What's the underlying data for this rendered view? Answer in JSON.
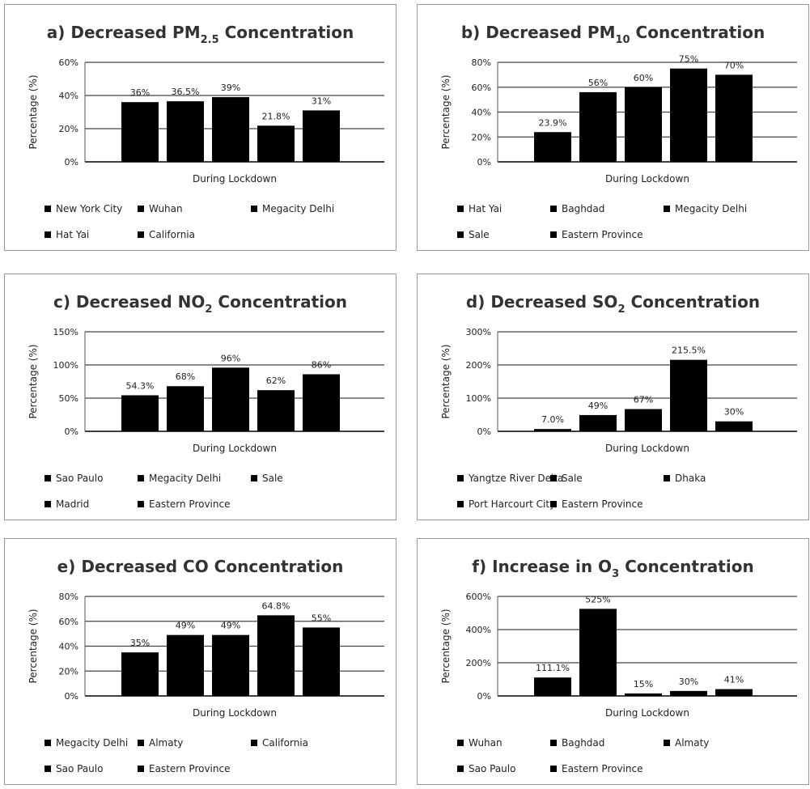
{
  "chart_data": [
    {
      "id": "a",
      "type": "bar",
      "title": "a)  Decreased PM2.5 Concentration",
      "title_parts": {
        "prefix": "a)  Decreased PM",
        "sub": "2.5",
        "suffix": " Concentration"
      },
      "xlabel": "During Lockdown",
      "ylabel": "Percentage (%)",
      "ylim": [
        0,
        60
      ],
      "yticks": [
        "0%",
        "20%",
        "40%",
        "60%"
      ],
      "categories": [
        "New York City",
        "Wuhan",
        "Megacity Delhi",
        "Hat Yai",
        "California"
      ],
      "values": [
        36,
        36.5,
        39,
        21.8,
        31
      ],
      "data_labels": [
        "36%",
        "36.5%",
        "39%",
        "21.8%",
        "31%"
      ],
      "legend_position": "bottom",
      "bar_color": "#000000"
    },
    {
      "id": "b",
      "type": "bar",
      "title": "b)  Decreased PM10 Concentration",
      "title_parts": {
        "prefix": "b)  Decreased PM",
        "sub": "10",
        "suffix": " Concentration"
      },
      "xlabel": "During Lockdown",
      "ylabel": "Percentage (%)",
      "ylim": [
        0,
        80
      ],
      "yticks": [
        "0%",
        "20%",
        "40%",
        "60%",
        "80%"
      ],
      "categories": [
        "Hat Yai",
        "Baghdad",
        "Megacity Delhi",
        "Sale",
        "Eastern Province"
      ],
      "values": [
        23.9,
        56,
        60,
        75,
        70
      ],
      "data_labels": [
        "23.9%",
        "56%",
        "60%",
        "75%",
        "70%"
      ],
      "legend_position": "bottom",
      "bar_color": "#000000"
    },
    {
      "id": "c",
      "type": "bar",
      "title": "c) Decreased NO2 Concentration",
      "title_parts": {
        "prefix": "c) Decreased NO",
        "sub": "2",
        "suffix": " Concentration"
      },
      "xlabel": "During Lockdown",
      "ylabel": "Percentage (%)",
      "ylim": [
        0,
        150
      ],
      "yticks": [
        "0%",
        "50%",
        "100%",
        "150%"
      ],
      "categories": [
        "Sao Paulo",
        "Megacity Delhi",
        "Sale",
        "Madrid",
        "Eastern Province"
      ],
      "values": [
        54.3,
        68,
        96,
        62,
        86
      ],
      "data_labels": [
        "54.3%",
        "68%",
        "96%",
        "62%",
        "86%"
      ],
      "legend_position": "bottom",
      "bar_color": "#000000"
    },
    {
      "id": "d",
      "type": "bar",
      "title": "d) Decreased SO2 Concentration",
      "title_parts": {
        "prefix": "d) Decreased SO",
        "sub": "2",
        "suffix": " Concentration"
      },
      "xlabel": "During Lockdown",
      "ylabel": "Percentage (%)",
      "ylim": [
        0,
        300
      ],
      "yticks": [
        "0%",
        "100%",
        "200%",
        "300%"
      ],
      "categories": [
        "Yangtze River Delta",
        "Sale",
        "Dhaka",
        "Port Harcourt City",
        "Eastern Province"
      ],
      "values": [
        7,
        49,
        67,
        215.5,
        30
      ],
      "data_labels": [
        "7.0%",
        "49%",
        "67%",
        "215.5%",
        "30%"
      ],
      "legend_position": "bottom",
      "bar_color": "#000000"
    },
    {
      "id": "e",
      "type": "bar",
      "title": "e) Decreased CO Concentration",
      "title_parts": {
        "prefix": "e) Decreased CO Concentration",
        "sub": "",
        "suffix": ""
      },
      "xlabel": "During Lockdown",
      "ylabel": "Percentage (%)",
      "ylim": [
        0,
        80
      ],
      "yticks": [
        "0%",
        "20%",
        "40%",
        "60%",
        "80%"
      ],
      "categories": [
        "Megacity Delhi",
        "Almaty",
        "California",
        "Sao Paulo",
        "Eastern Province"
      ],
      "values": [
        35,
        49,
        49,
        64.8,
        55
      ],
      "data_labels": [
        "35%",
        "49%",
        "49%",
        "64.8%",
        "55%"
      ],
      "legend_position": "bottom",
      "bar_color": "#000000"
    },
    {
      "id": "f",
      "type": "bar",
      "title": "f)  Increase in O3 Concentration",
      "title_parts": {
        "prefix": "f)  Increase in O",
        "sub": "3",
        "suffix": " Concentration"
      },
      "xlabel": "During Lockdown",
      "ylabel": "Percentage (%)",
      "ylim": [
        0,
        600
      ],
      "yticks": [
        "0%",
        "200%",
        "400%",
        "600%"
      ],
      "categories": [
        "Wuhan",
        "Baghdad",
        "Almaty",
        "Sao Paulo",
        "Eastern Province"
      ],
      "values": [
        111.1,
        525,
        15,
        30,
        41
      ],
      "data_labels": [
        "111.1%",
        "525%",
        "15%",
        "30%",
        "41%"
      ],
      "legend_position": "bottom",
      "bar_color": "#000000"
    }
  ]
}
